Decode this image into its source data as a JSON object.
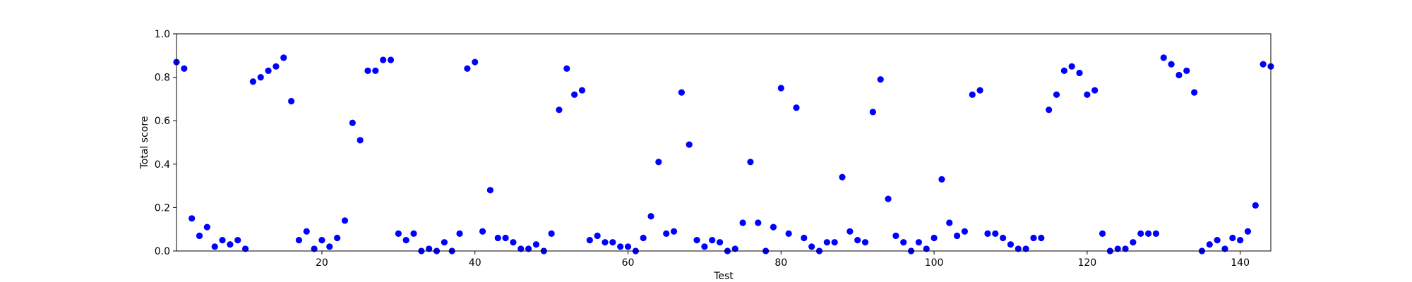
{
  "chart_data": {
    "type": "scatter",
    "xlabel": "Test",
    "ylabel": "Total score",
    "xlim": [
      1,
      144
    ],
    "ylim": [
      0,
      1.0
    ],
    "x_ticks": [
      20,
      40,
      60,
      80,
      100,
      120,
      140
    ],
    "y_ticks": [
      0.0,
      0.2,
      0.4,
      0.6,
      0.8,
      1.0
    ],
    "y_tick_labels": [
      "0.0",
      "0.2",
      "0.4",
      "0.6",
      "0.8",
      "1.0"
    ],
    "grid": false,
    "marker_color": "#0000ff",
    "series": [
      {
        "x": [
          1,
          2,
          3,
          4,
          5,
          6,
          7,
          8,
          9,
          10,
          11,
          12,
          13,
          14,
          15,
          16,
          17,
          18,
          19,
          20,
          21,
          22,
          23,
          24,
          25,
          26,
          27,
          28,
          29,
          30,
          31,
          32,
          33,
          34,
          35,
          36,
          37,
          38,
          39,
          40,
          41,
          42,
          43,
          44,
          45,
          46,
          47,
          48,
          49,
          50,
          51,
          52,
          53,
          54,
          55,
          56,
          57,
          58,
          59,
          60,
          61,
          62,
          63,
          64,
          65,
          66,
          67,
          68,
          69,
          70,
          71,
          72,
          73,
          74,
          75,
          76,
          77,
          78,
          79,
          80,
          81,
          82,
          83,
          84,
          85,
          86,
          87,
          88,
          89,
          90,
          91,
          92,
          93,
          94,
          95,
          96,
          97,
          98,
          99,
          100,
          101,
          102,
          103,
          104,
          105,
          106,
          107,
          108,
          109,
          110,
          111,
          112,
          113,
          114,
          115,
          116,
          117,
          118,
          119,
          120,
          121,
          122,
          123,
          124,
          125,
          126,
          127,
          128,
          129,
          130,
          131,
          132,
          133,
          134,
          135,
          136,
          137,
          138,
          139,
          140,
          141,
          142,
          143,
          144
        ],
        "y": [
          0.87,
          0.84,
          0.15,
          0.07,
          0.11,
          0.02,
          0.05,
          0.03,
          0.05,
          0.01,
          0.78,
          0.8,
          0.83,
          0.85,
          0.89,
          0.69,
          0.05,
          0.09,
          0.01,
          0.05,
          0.02,
          0.06,
          0.14,
          0.59,
          0.51,
          0.83,
          0.83,
          0.88,
          0.88,
          0.08,
          0.05,
          0.08,
          0.0,
          0.01,
          0.0,
          0.04,
          0.0,
          0.08,
          0.84,
          0.87,
          0.09,
          0.28,
          0.06,
          0.06,
          0.04,
          0.01,
          0.01,
          0.03,
          0.0,
          0.08,
          0.65,
          0.84,
          0.72,
          0.74,
          0.05,
          0.07,
          0.04,
          0.04,
          0.02,
          0.02,
          0.0,
          0.06,
          0.16,
          0.41,
          0.08,
          0.09,
          0.73,
          0.49,
          0.05,
          0.02,
          0.05,
          0.04,
          0.0,
          0.01,
          0.13,
          0.41,
          0.13,
          0.0,
          0.11,
          0.75,
          0.08,
          0.66,
          0.06,
          0.02,
          0.0,
          0.04,
          0.04,
          0.34,
          0.09,
          0.05,
          0.04,
          0.64,
          0.79,
          0.24,
          0.07,
          0.04,
          0.0,
          0.04,
          0.01,
          0.06,
          0.33,
          0.13,
          0.07,
          0.09,
          0.72,
          0.74,
          0.08,
          0.08,
          0.06,
          0.03,
          0.01,
          0.01,
          0.06,
          0.06,
          0.65,
          0.72,
          0.83,
          0.85,
          0.82,
          0.72,
          0.74,
          0.08,
          0.0,
          0.01,
          0.01,
          0.04,
          0.08,
          0.08,
          0.08,
          0.89,
          0.86,
          0.81,
          0.83,
          0.73,
          0.0,
          0.03,
          0.05,
          0.01,
          0.06,
          0.05,
          0.09,
          0.21,
          0.86,
          0.85
        ]
      }
    ]
  }
}
